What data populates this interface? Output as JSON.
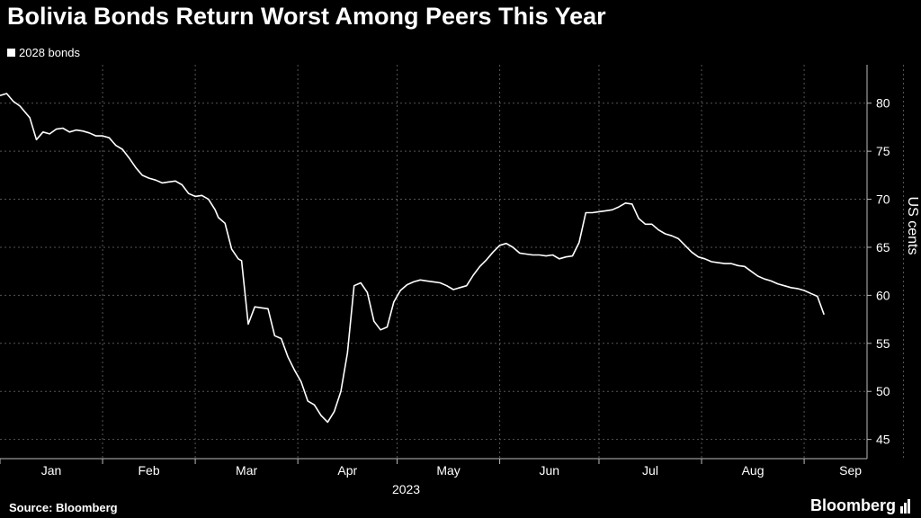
{
  "header": {
    "title": "Bolivia Bonds Return Worst Among Peers This Year"
  },
  "footer": {
    "source": "Source: Bloomberg",
    "brand": "Bloomberg"
  },
  "chart_data": {
    "type": "line",
    "title": "Bolivia Bonds Return Worst Among Peers This Year",
    "ylabel": "US cents",
    "xlabel": "2023",
    "ylim": [
      43,
      84
    ],
    "grid": true,
    "legend_position": "top-left",
    "y_ticks": [
      45,
      50,
      55,
      60,
      65,
      70,
      75,
      80
    ],
    "x_ticks": [
      "Jan",
      "Feb",
      "Mar",
      "Apr",
      "May",
      "Jun",
      "Jul",
      "Aug",
      "Sep"
    ],
    "x_year_label": "2023",
    "series": [
      {
        "name": "2028 bonds",
        "color": "#ffffff",
        "x": [
          "2023-01-01",
          "2023-01-03",
          "2023-01-05",
          "2023-01-07",
          "2023-01-09",
          "2023-01-10",
          "2023-01-12",
          "2023-01-14",
          "2023-01-16",
          "2023-01-18",
          "2023-01-20",
          "2023-01-22",
          "2023-01-24",
          "2023-01-26",
          "2023-01-28",
          "2023-01-30",
          "2023-02-01",
          "2023-02-03",
          "2023-02-05",
          "2023-02-07",
          "2023-02-09",
          "2023-02-11",
          "2023-02-13",
          "2023-02-15",
          "2023-02-17",
          "2023-02-19",
          "2023-02-21",
          "2023-02-23",
          "2023-02-25",
          "2023-02-27",
          "2023-03-01",
          "2023-03-03",
          "2023-03-05",
          "2023-03-07",
          "2023-03-08",
          "2023-03-10",
          "2023-03-12",
          "2023-03-14",
          "2023-03-15",
          "2023-03-17",
          "2023-03-19",
          "2023-03-21",
          "2023-03-23",
          "2023-03-25",
          "2023-03-27",
          "2023-03-29",
          "2023-03-31",
          "2023-04-02",
          "2023-04-04",
          "2023-04-06",
          "2023-04-08",
          "2023-04-10",
          "2023-04-12",
          "2023-04-14",
          "2023-04-16",
          "2023-04-18",
          "2023-04-20",
          "2023-04-22",
          "2023-04-24",
          "2023-04-26",
          "2023-04-28",
          "2023-04-30",
          "2023-05-02",
          "2023-05-04",
          "2023-05-06",
          "2023-05-08",
          "2023-05-10",
          "2023-05-12",
          "2023-05-14",
          "2023-05-16",
          "2023-05-18",
          "2023-05-20",
          "2023-05-22",
          "2023-05-24",
          "2023-05-26",
          "2023-05-28",
          "2023-05-30",
          "2023-06-01",
          "2023-06-03",
          "2023-06-05",
          "2023-06-07",
          "2023-06-09",
          "2023-06-11",
          "2023-06-13",
          "2023-06-15",
          "2023-06-17",
          "2023-06-19",
          "2023-06-21",
          "2023-06-23",
          "2023-06-25",
          "2023-06-27",
          "2023-06-29",
          "2023-07-01",
          "2023-07-03",
          "2023-07-05",
          "2023-07-07",
          "2023-07-09",
          "2023-07-11",
          "2023-07-13",
          "2023-07-15",
          "2023-07-17",
          "2023-07-19",
          "2023-07-21",
          "2023-07-23",
          "2023-07-25",
          "2023-07-27",
          "2023-07-29",
          "2023-07-31",
          "2023-08-02",
          "2023-08-04",
          "2023-08-06",
          "2023-08-08",
          "2023-08-10",
          "2023-08-12",
          "2023-08-14",
          "2023-08-16",
          "2023-08-18",
          "2023-08-20",
          "2023-08-22",
          "2023-08-24",
          "2023-08-26",
          "2023-08-28",
          "2023-08-30",
          "2023-09-01",
          "2023-09-03",
          "2023-09-05",
          "2023-09-07",
          "2023-09-09",
          "2023-09-11",
          "2023-09-13",
          "2023-09-15"
        ],
        "values": [
          80.8,
          81.0,
          80.2,
          79.7,
          78.9,
          78.5,
          76.2,
          77.0,
          76.8,
          77.3,
          77.4,
          77.0,
          77.2,
          77.1,
          76.9,
          76.6,
          76.6,
          76.4,
          75.6,
          75.2,
          74.3,
          73.3,
          72.5,
          72.2,
          72.0,
          71.7,
          71.8,
          71.9,
          71.5,
          70.6,
          70.3,
          70.4,
          70.0,
          68.9,
          68.1,
          67.5,
          64.8,
          63.8,
          63.6,
          57.0,
          58.8,
          58.7,
          58.6,
          55.8,
          55.5,
          53.6,
          52.2,
          51.0,
          49.0,
          48.6,
          47.5,
          46.8,
          47.9,
          50.0,
          54.0,
          61.0,
          61.3,
          60.3,
          57.3,
          56.4,
          56.7,
          59.3,
          60.5,
          61.1,
          61.4,
          61.6,
          61.5,
          61.4,
          61.3,
          61.0,
          60.6,
          60.8,
          61.0,
          62.1,
          63.0,
          63.7,
          64.5,
          65.2,
          65.4,
          65.0,
          64.4,
          64.3,
          64.2,
          64.2,
          64.1,
          64.2,
          63.8,
          64.0,
          64.1,
          65.5,
          68.6,
          68.6,
          68.7,
          68.8,
          68.9,
          69.2,
          69.6,
          69.5,
          68.0,
          67.4,
          67.4,
          66.8,
          66.4,
          66.2,
          65.9,
          65.2,
          64.5,
          64.0,
          63.8,
          63.5,
          63.4,
          63.3,
          63.3,
          63.1,
          63.0,
          62.5,
          62.0,
          61.7,
          61.5,
          61.2,
          61.0,
          60.8,
          60.7,
          60.5,
          60.2,
          59.9,
          58.0,
          58.0,
          58.0,
          58.0,
          58.0
        ]
      }
    ]
  }
}
